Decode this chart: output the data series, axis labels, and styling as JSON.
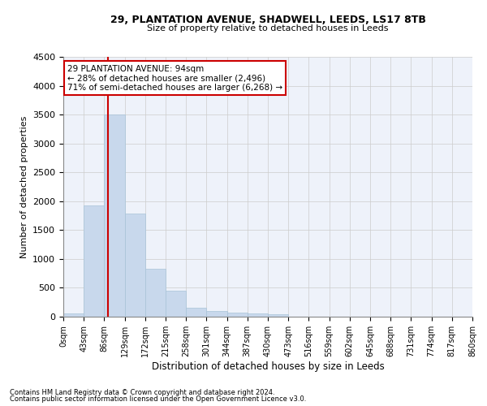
{
  "title": "29, PLANTATION AVENUE, SHADWELL, LEEDS, LS17 8TB",
  "subtitle": "Size of property relative to detached houses in Leeds",
  "xlabel": "Distribution of detached houses by size in Leeds",
  "ylabel": "Number of detached properties",
  "bar_color": "#c8d8ec",
  "bar_edge_color": "#a8c4d8",
  "bar_heights": [
    50,
    1920,
    3500,
    1790,
    830,
    455,
    160,
    100,
    70,
    55,
    40,
    0,
    0,
    0,
    0,
    0,
    0,
    0,
    0,
    0
  ],
  "x_labels": [
    "0sqm",
    "43sqm",
    "86sqm",
    "129sqm",
    "172sqm",
    "215sqm",
    "258sqm",
    "301sqm",
    "344sqm",
    "387sqm",
    "430sqm",
    "473sqm",
    "516sqm",
    "559sqm",
    "602sqm",
    "645sqm",
    "688sqm",
    "731sqm",
    "774sqm",
    "817sqm",
    "860sqm"
  ],
  "ylim": [
    0,
    4500
  ],
  "yticks": [
    0,
    500,
    1000,
    1500,
    2000,
    2500,
    3000,
    3500,
    4000,
    4500
  ],
  "annotation_title": "29 PLANTATION AVENUE: 94sqm",
  "annotation_line1": "← 28% of detached houses are smaller (2,496)",
  "annotation_line2": "71% of semi-detached houses are larger (6,268) →",
  "annotation_box_color": "#ffffff",
  "annotation_box_edge": "#cc0000",
  "vline_color": "#cc0000",
  "grid_color": "#cccccc",
  "footer1": "Contains HM Land Registry data © Crown copyright and database right 2024.",
  "footer2": "Contains public sector information licensed under the Open Government Licence v3.0.",
  "background_color": "#eef2fa"
}
